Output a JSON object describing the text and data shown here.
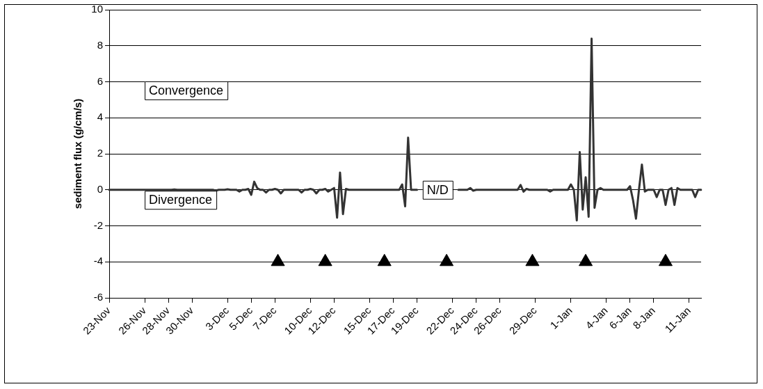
{
  "chart_data": {
    "type": "line",
    "ylabel": "sediment flux (g/cm/s)",
    "categories": [
      "23-Nov",
      null,
      null,
      null,
      null,
      null,
      null,
      null,
      null,
      null,
      null,
      null,
      "26-Nov",
      null,
      null,
      null,
      null,
      null,
      null,
      null,
      "28-Nov",
      null,
      null,
      null,
      null,
      null,
      null,
      null,
      "30-Nov",
      null,
      null,
      null,
      null,
      null,
      null,
      null,
      null,
      null,
      null,
      null,
      "3-Dec",
      null,
      null,
      null,
      null,
      null,
      null,
      null,
      "5-Dec",
      null,
      null,
      null,
      null,
      null,
      null,
      null,
      "7-Dec",
      null,
      null,
      null,
      null,
      null,
      null,
      null,
      null,
      null,
      null,
      null,
      "10-Dec",
      null,
      null,
      null,
      null,
      null,
      null,
      null,
      "12-Dec",
      null,
      null,
      null,
      null,
      null,
      null,
      null,
      null,
      null,
      null,
      null,
      "15-Dec",
      null,
      null,
      null,
      null,
      null,
      null,
      null,
      "17-Dec",
      null,
      null,
      null,
      null,
      null,
      null,
      null,
      "19-Dec",
      null,
      null,
      null,
      null,
      null,
      null,
      null,
      null,
      null,
      null,
      null,
      "22-Dec",
      null,
      null,
      null,
      null,
      null,
      null,
      null,
      "24-Dec",
      null,
      null,
      null,
      null,
      null,
      null,
      null,
      "26-Dec",
      null,
      null,
      null,
      null,
      null,
      null,
      null,
      null,
      null,
      null,
      null,
      "29-Dec",
      null,
      null,
      null,
      null,
      null,
      null,
      null,
      null,
      null,
      null,
      null,
      "1-Jan",
      null,
      null,
      null,
      null,
      null,
      null,
      null,
      null,
      null,
      null,
      null,
      "4-Jan",
      null,
      null,
      null,
      null,
      null,
      null,
      null,
      "6-Jan",
      null,
      null,
      null,
      null,
      null,
      null,
      null,
      "8-Jan",
      null,
      null,
      null,
      null,
      null,
      null,
      null,
      null,
      null,
      null,
      null,
      "11-Jan",
      null,
      null,
      null,
      null
    ],
    "ylim": [
      -6,
      10
    ],
    "yticks": [
      -6,
      -4,
      -2,
      0,
      2,
      4,
      6,
      8,
      10
    ],
    "grid": "y",
    "legend": false,
    "series": [
      {
        "type": "line",
        "color": "#333333",
        "marker": "none",
        "line_style": "solid",
        "values": [
          0,
          0,
          0,
          0,
          0,
          0,
          0,
          0,
          0,
          0,
          0,
          0,
          0,
          0,
          0,
          0,
          0,
          0,
          0,
          0,
          0,
          0,
          0.02,
          0,
          0,
          0,
          0,
          0,
          0,
          0,
          0,
          0,
          0,
          0,
          0,
          0,
          -0.05,
          0,
          0,
          0,
          0.03,
          0,
          0,
          0,
          -0.1,
          0,
          0,
          0.05,
          -0.28,
          0.45,
          0.1,
          0,
          0,
          -0.15,
          0,
          0,
          0.05,
          0,
          -0.2,
          0,
          0,
          0,
          0,
          0,
          0,
          -0.15,
          0,
          0,
          0.05,
          0,
          -0.2,
          0,
          0,
          0.05,
          -0.1,
          0,
          0.1,
          -1.55,
          0.96,
          -1.35,
          0.05,
          0,
          0,
          0,
          0,
          0,
          0,
          0,
          0,
          0,
          0,
          0,
          0,
          0,
          0,
          0,
          0,
          0,
          0,
          0.3,
          -0.92,
          2.9,
          0,
          0,
          0,
          null,
          null,
          null,
          null,
          null,
          null,
          null,
          null,
          null,
          null,
          null,
          null,
          null,
          0,
          0,
          0,
          0,
          0.1,
          -0.05,
          0,
          0,
          0,
          0,
          0,
          0,
          0,
          0,
          0,
          0,
          0,
          0,
          0,
          0,
          0,
          0.27,
          -0.1,
          0.05,
          0,
          0,
          0,
          0,
          0,
          0,
          0,
          -0.1,
          0,
          0,
          0,
          0,
          0,
          0,
          0.3,
          0,
          -1.7,
          2.1,
          -1.1,
          0.7,
          -1.5,
          8.4,
          -1.0,
          0,
          0.1,
          0,
          0,
          0,
          0,
          0,
          0,
          0,
          0,
          0,
          0.2,
          -0.57,
          -1.6,
          0,
          1.4,
          -0.1,
          0,
          0,
          0,
          -0.4,
          0,
          0,
          -0.84,
          0,
          0.1,
          -0.84,
          0.1,
          0,
          0,
          0,
          0,
          0,
          -0.4,
          0,
          0
        ]
      },
      {
        "type": "scatter",
        "color": "#000000",
        "marker": "triangle",
        "values": [
          null,
          null,
          null,
          null,
          null,
          null,
          null,
          null,
          null,
          null,
          null,
          null,
          null,
          null,
          null,
          null,
          null,
          null,
          null,
          null,
          null,
          null,
          null,
          null,
          null,
          null,
          null,
          null,
          null,
          null,
          null,
          null,
          null,
          null,
          null,
          null,
          null,
          null,
          null,
          null,
          null,
          null,
          null,
          null,
          null,
          null,
          null,
          null,
          null,
          null,
          null,
          null,
          null,
          null,
          null,
          null,
          null,
          -4,
          null,
          null,
          null,
          null,
          null,
          null,
          null,
          null,
          null,
          null,
          null,
          null,
          null,
          null,
          null,
          -4,
          null,
          null,
          null,
          null,
          null,
          null,
          null,
          null,
          null,
          null,
          null,
          null,
          null,
          null,
          null,
          null,
          null,
          null,
          null,
          -4,
          null,
          null,
          null,
          null,
          null,
          null,
          null,
          null,
          null,
          null,
          null,
          null,
          null,
          null,
          null,
          null,
          null,
          null,
          null,
          null,
          -4,
          null,
          null,
          null,
          null,
          null,
          null,
          null,
          null,
          null,
          null,
          null,
          null,
          null,
          null,
          null,
          null,
          null,
          null,
          null,
          null,
          null,
          null,
          null,
          null,
          null,
          null,
          null,
          null,
          -4,
          null,
          null,
          null,
          null,
          null,
          null,
          null,
          null,
          null,
          null,
          null,
          null,
          null,
          null,
          null,
          null,
          null,
          -4,
          null,
          null,
          null,
          null,
          null,
          null,
          null,
          null,
          null,
          null,
          null,
          null,
          null,
          null,
          null,
          null,
          null,
          null,
          null,
          null,
          null,
          null,
          null,
          null,
          null,
          null,
          -4,
          null,
          null,
          null,
          null,
          null,
          null,
          null,
          null,
          null,
          null,
          null,
          null
        ]
      }
    ],
    "annotations": [
      "Convergence",
      "Divergence",
      "N/D"
    ]
  }
}
